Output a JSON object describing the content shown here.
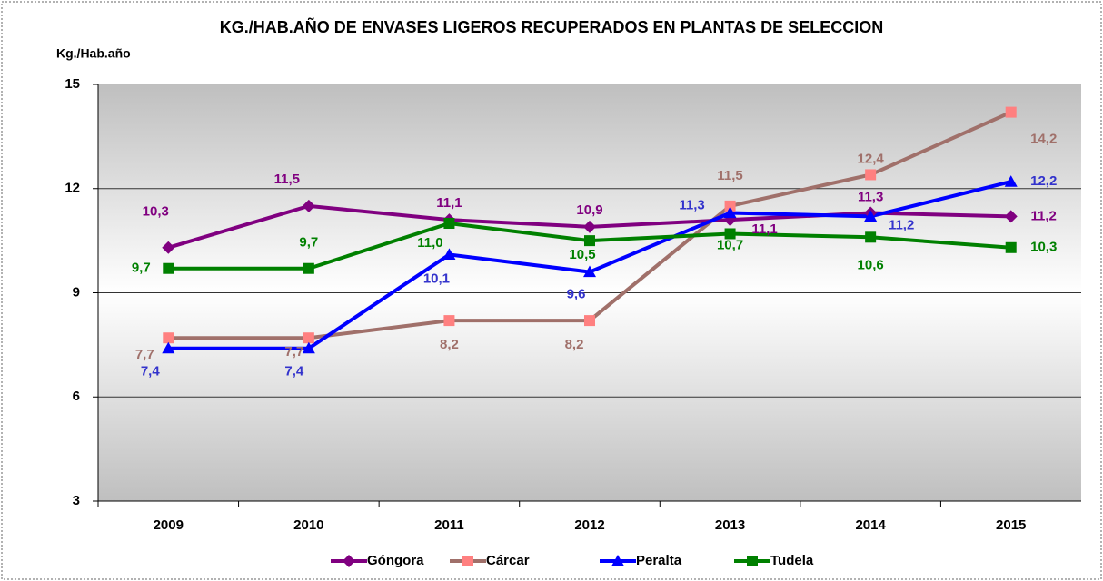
{
  "chart_data": {
    "type": "line",
    "title": "KG./HAB.AÑO DE ENVASES LIGEROS RECUPERADOS EN PLANTAS DE SELECCION",
    "y_label": "Kg./Hab.año",
    "categories": [
      "2009",
      "2010",
      "2011",
      "2012",
      "2013",
      "2014",
      "2015"
    ],
    "series": [
      {
        "name": "Góngora",
        "color": "#800080",
        "values": [
          10.3,
          11.5,
          11.1,
          10.9,
          11.1,
          11.3,
          11.2
        ],
        "value_labels": [
          "10,3",
          "11,5",
          "11,1",
          "10,9",
          "11,1",
          "11,3",
          "11,2"
        ]
      },
      {
        "name": "Cárcar",
        "color": "#a0706a",
        "values": [
          7.7,
          7.7,
          8.2,
          8.2,
          11.5,
          12.4,
          14.2
        ],
        "value_labels": [
          "7,7",
          "7,7",
          "8,2",
          "8,2",
          "11,5",
          "12,4",
          "14,2"
        ]
      },
      {
        "name": "Peralta",
        "color": "#0000ff",
        "values": [
          7.4,
          7.4,
          10.1,
          9.6,
          11.3,
          11.2,
          12.2
        ],
        "value_labels": [
          "7,4",
          "7,4",
          "10,1",
          "9,6",
          "11,3",
          "11,2",
          "12,2"
        ]
      },
      {
        "name": "Tudela",
        "color": "#008000",
        "values": [
          9.7,
          9.7,
          11.0,
          10.5,
          10.7,
          10.6,
          10.3
        ],
        "value_labels": [
          "9,7",
          "9,7",
          "11,0",
          "10,5",
          "10,7",
          "10,6",
          "10,3"
        ]
      }
    ],
    "ylim": [
      3,
      15
    ],
    "yticks": [
      3,
      6,
      9,
      12,
      15
    ],
    "grid": true,
    "legend": "bottom"
  }
}
